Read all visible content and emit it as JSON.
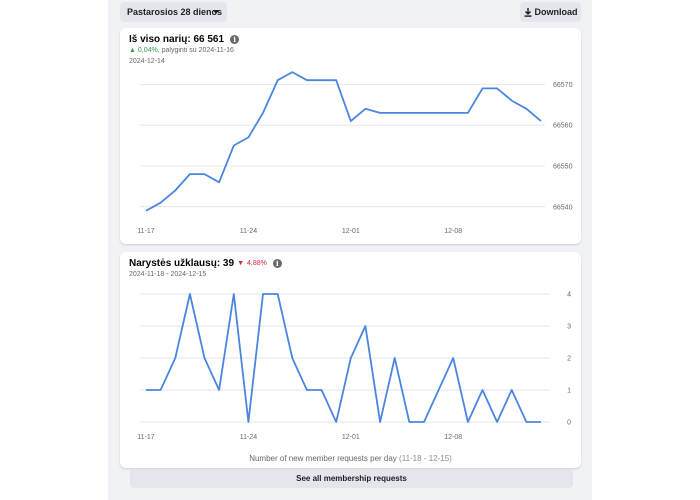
{
  "toolbar": {
    "range_label": "Pastarosios 28 dienos",
    "download_label": "Download"
  },
  "members_card": {
    "title": "Iš viso narių: 66 561",
    "delta_pct": "0,04%",
    "delta_text": ", palyginti su 2024-11-16",
    "date": "2024-12-14"
  },
  "requests_card": {
    "title": "Narystės užklausų: 39",
    "delta_pct": "4,88%",
    "date_range": "2024-11-18 - 2024-12-15",
    "caption": "Number of new member requests per day",
    "caption_range": "(11-18 - 12-15)",
    "see_all_label": "See all membership requests"
  },
  "colors": {
    "line": "#4a86e0",
    "up": "#31a24c",
    "down": "#e41e3f"
  },
  "chart_data": [
    {
      "type": "line",
      "x_tick_labels": [
        "11-17",
        "11-24",
        "12-01",
        "12-08"
      ],
      "y_tick_labels": [
        "66540",
        "66550",
        "66560",
        "66570"
      ],
      "ylim": [
        66537,
        66574
      ],
      "grid": true,
      "series": [
        {
          "values": [
            66539,
            66541,
            66544,
            66548,
            66548,
            66546,
            66555,
            66557,
            66563,
            66571,
            66573,
            66571,
            66571,
            66571,
            66561,
            66564,
            66563,
            66563,
            66563,
            66563,
            66563,
            66563,
            66563,
            66569,
            66569,
            66566,
            66564,
            66561
          ]
        }
      ]
    },
    {
      "type": "line",
      "x_tick_labels": [
        "11-17",
        "11-24",
        "12-01",
        "12-08"
      ],
      "y_tick_labels": [
        "0",
        "1",
        "2",
        "3",
        "4"
      ],
      "ylim": [
        0,
        4
      ],
      "grid": true,
      "series": [
        {
          "values": [
            1,
            1,
            2,
            4,
            2,
            1,
            4,
            0,
            4,
            4,
            2,
            1,
            1,
            0,
            2,
            3,
            0,
            2,
            0,
            0,
            1,
            2,
            0,
            1,
            0,
            1,
            0,
            0
          ]
        }
      ]
    }
  ]
}
